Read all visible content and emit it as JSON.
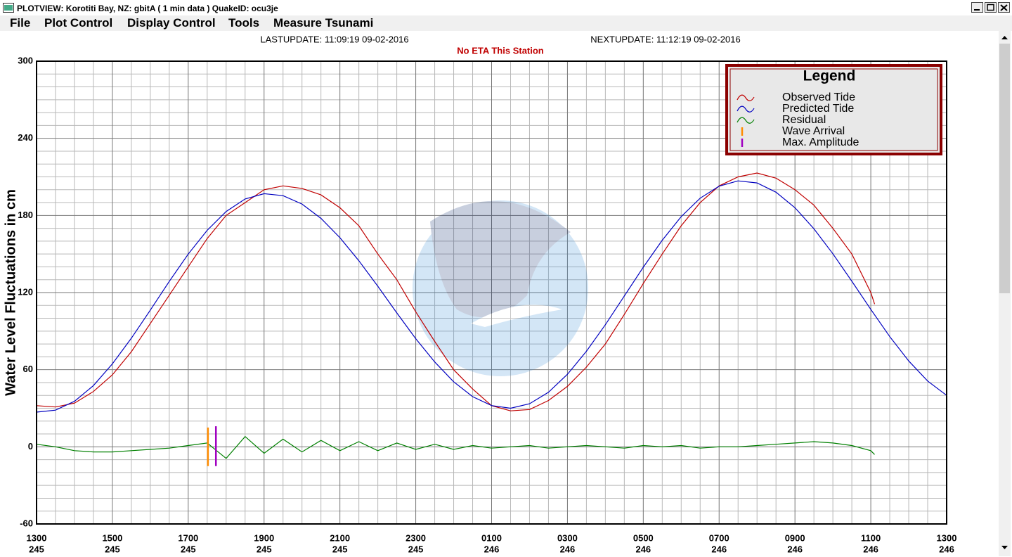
{
  "window": {
    "title": "PLOTVIEW:  Korotiti Bay, NZ: gbitA (  1 min data )     QuakeID: ocu3je",
    "menu": [
      "File",
      "Plot Control",
      "Display Control",
      "Tools",
      "Measure Tsunami"
    ]
  },
  "chart_data": {
    "type": "line",
    "last_update": "LASTUPDATE: 11:09:19 09-02-2016",
    "next_update": "NEXTUPDATE: 11:12:19 09-02-2016",
    "subtitle": "No ETA This Station",
    "y_label": "Water Level Fluctuations in cm",
    "legend_title": "Legend",
    "legend": "upper right",
    "grid": true,
    "xlim": [
      0,
      24
    ],
    "ylim": [
      -60,
      300
    ],
    "yticks": [
      -60,
      0,
      60,
      120,
      180,
      240,
      300
    ],
    "xticks": [
      {
        "value": 0,
        "label": [
          "1300",
          "245"
        ]
      },
      {
        "value": 2,
        "label": [
          "1500",
          "245"
        ]
      },
      {
        "value": 4,
        "label": [
          "1700",
          "245"
        ]
      },
      {
        "value": 6,
        "label": [
          "1900",
          "245"
        ]
      },
      {
        "value": 8,
        "label": [
          "2100",
          "245"
        ]
      },
      {
        "value": 10,
        "label": [
          "2300",
          "245"
        ]
      },
      {
        "value": 12,
        "label": [
          "0100",
          "246"
        ]
      },
      {
        "value": 14,
        "label": [
          "0300",
          "246"
        ]
      },
      {
        "value": 16,
        "label": [
          "0500",
          "246"
        ]
      },
      {
        "value": 18,
        "label": [
          "0700",
          "246"
        ]
      },
      {
        "value": 20,
        "label": [
          "0900",
          "246"
        ]
      },
      {
        "value": 22,
        "label": [
          "1100",
          "246"
        ]
      },
      {
        "value": 24,
        "label": [
          "1300",
          "246"
        ]
      }
    ],
    "series": [
      {
        "name": "Observed Tide",
        "color": "#c00000",
        "x": [
          0,
          0.5,
          1,
          1.5,
          2,
          2.5,
          3,
          3.5,
          4,
          4.5,
          5,
          5.5,
          6,
          6.5,
          7,
          7.5,
          8,
          8.5,
          9,
          9.5,
          10,
          10.5,
          11,
          11.5,
          12,
          12.5,
          13,
          13.5,
          14,
          14.5,
          15,
          15.5,
          16,
          16.5,
          17,
          17.5,
          18,
          18.5,
          19,
          19.5,
          20,
          20.5,
          21,
          21.5,
          22,
          22.1
        ],
        "values": [
          32,
          31,
          34,
          43,
          56,
          74,
          96,
          118,
          140,
          162,
          180,
          190,
          200,
          203,
          201,
          196,
          186,
          172,
          150,
          130,
          105,
          82,
          60,
          45,
          32,
          28,
          29,
          36,
          47,
          62,
          80,
          103,
          127,
          150,
          172,
          190,
          203,
          210,
          213,
          209,
          200,
          188,
          170,
          150,
          120,
          111
        ]
      },
      {
        "name": "Predicted Tide",
        "color": "#0000c0",
        "x": [
          0,
          0.5,
          1,
          1.5,
          2,
          2.5,
          3,
          3.5,
          4,
          4.5,
          5,
          5.5,
          6,
          6.5,
          7,
          7.5,
          8,
          8.5,
          9,
          9.5,
          10,
          10.5,
          11,
          11.5,
          12,
          12.5,
          13,
          13.5,
          14,
          14.5,
          15,
          15.5,
          16,
          16.5,
          17,
          17.5,
          18,
          18.5,
          19,
          19.5,
          20,
          20.5,
          21,
          21.5,
          22,
          22.5,
          23,
          23.5,
          24
        ],
        "values": [
          27,
          28.5,
          35.4,
          47.6,
          64.5,
          84.5,
          106.4,
          128.7,
          149.9,
          168.4,
          183.1,
          192.8,
          196.9,
          195.4,
          188.9,
          177.7,
          162.7,
          144.8,
          124.9,
          104.2,
          84.1,
          66,
          50.6,
          39,
          32.1,
          30,
          33.5,
          42.4,
          56.4,
          74.3,
          95,
          117.4,
          139.7,
          160.7,
          179.1,
          193.4,
          202.8,
          206.9,
          205.3,
          198.1,
          186,
          169.7,
          150.2,
          128.8,
          106.9,
          85.7,
          66.8,
          51.2,
          40
        ]
      },
      {
        "name": "Residual",
        "color": "#008000",
        "x": [
          0,
          0.5,
          1,
          1.5,
          2,
          2.5,
          3,
          3.5,
          4,
          4.5,
          5,
          5.5,
          6,
          6.5,
          7,
          7.5,
          8,
          8.5,
          9,
          9.5,
          10,
          10.5,
          11,
          11.5,
          12,
          12.5,
          13,
          13.5,
          14,
          14.5,
          15,
          15.5,
          16,
          16.5,
          17,
          17.5,
          18,
          18.5,
          19,
          19.5,
          20,
          20.5,
          21,
          21.5,
          22,
          22.1
        ],
        "values": [
          2,
          0,
          -3,
          -4,
          -4,
          -3,
          -2,
          -1,
          1,
          3,
          -9,
          8,
          -5,
          6,
          -4,
          5,
          -3,
          4,
          -3,
          3,
          -2,
          2,
          -2,
          1,
          -1,
          0,
          1,
          -1,
          0,
          1,
          0,
          -1,
          1,
          0,
          1,
          -1,
          0,
          0,
          1,
          2,
          3,
          4,
          3,
          1,
          -3,
          -6
        ]
      }
    ],
    "markers": [
      {
        "name": "Wave Arrival",
        "color": "#ff8c00",
        "x": 4.52,
        "ymin": -15,
        "ymax": 15
      },
      {
        "name": "Max. Amplitude",
        "color": "#a000c0",
        "x": 4.73,
        "ymin": -15,
        "ymax": 16
      }
    ]
  }
}
